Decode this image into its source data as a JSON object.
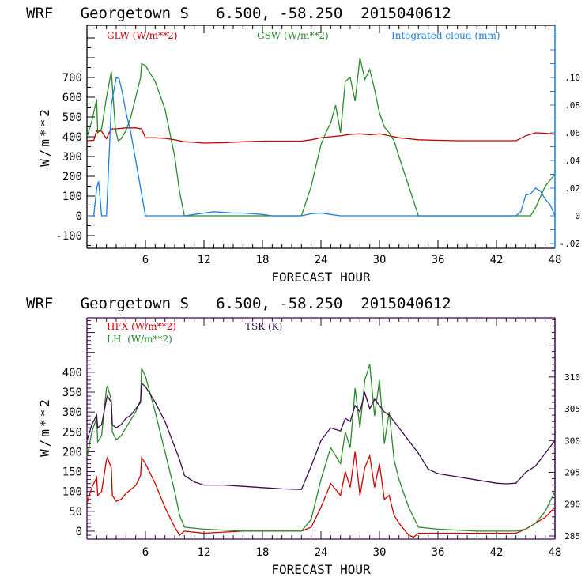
{
  "charts": [
    {
      "type": "line",
      "title": "WRF   Georgetown S   6.500, -58.250  2015040612",
      "xlabel": "FORECAST HOUR",
      "ylabel": "W/m**2",
      "xlim": [
        0,
        48
      ],
      "ylim": [
        -164,
        964
      ],
      "y2lim": [
        -0.0234,
        0.1377
      ],
      "xticks": [
        "6",
        "12",
        "18",
        "24",
        "30",
        "36",
        "42",
        "48"
      ],
      "yticks": [
        "-100",
        "0",
        "100",
        "200",
        "300",
        "400",
        "500",
        "600",
        "700"
      ],
      "y2ticks": [
        "-.02",
        "0",
        ".02",
        ".04",
        ".06",
        ".08",
        ".10"
      ],
      "frame_color": "#000000",
      "right_axis_color": "#1a7fe0",
      "legend": [
        {
          "label": "GLW (W/m**2)",
          "color": "#c00000"
        },
        {
          "label": "GSW (W/m**2)",
          "color": "#2a8a2a"
        },
        {
          "label": "Integrated cloud (mm)",
          "color": "#1a7fe0"
        }
      ]
    },
    {
      "type": "line",
      "title": "WRF   Georgetown S   6.500, -58.250  2015040612",
      "xlabel": "FORECAST HOUR",
      "ylabel": "W/m**2",
      "xlim": [
        0,
        48
      ],
      "ylim": [
        -20,
        537
      ],
      "y2lim": [
        284.5,
        319.3
      ],
      "xticks": [
        "6",
        "12",
        "18",
        "24",
        "30",
        "36",
        "42",
        "48"
      ],
      "yticks": [
        "0",
        "50",
        "100",
        "150",
        "200",
        "250",
        "300",
        "350",
        "400"
      ],
      "y2ticks": [
        "285",
        "290",
        "295",
        "300",
        "305",
        "310"
      ],
      "frame_color": "#3a0a4a",
      "right_axis_color": "#3a0a4a",
      "legend": [
        {
          "label": "HFX (W/m**2)",
          "color": "#d00000"
        },
        {
          "label": "LH  (W/m**2)",
          "color": "#2a8a2a"
        },
        {
          "label": "TSK (K)",
          "color": "#3a0a4a"
        }
      ]
    }
  ],
  "chart_data": [
    {
      "type": "line",
      "title": "WRF Georgetown S 6.500, -58.250 2015040612",
      "xlabel": "FORECAST HOUR",
      "ylabel": "W/m**2",
      "y2label": "Integrated cloud (mm)",
      "xlim": [
        0,
        48
      ],
      "ylim": [
        -164,
        964
      ],
      "y2lim": [
        -0.0234,
        0.1377
      ],
      "grid": false,
      "legend_position": "top",
      "series": [
        {
          "name": "GLW (W/m**2)",
          "axis": "left",
          "color": "#c00000",
          "x": [
            0,
            0.7,
            1,
            1.5,
            2,
            2.3,
            2.6,
            3,
            4,
            5,
            5.6,
            6,
            7,
            8,
            9,
            10,
            11,
            12,
            14,
            16,
            18,
            20,
            22,
            23,
            24,
            25,
            26,
            27,
            28,
            29,
            30,
            31,
            32,
            33,
            34,
            36,
            38,
            40,
            42,
            44,
            45,
            46,
            47,
            48
          ],
          "y": [
            380,
            382,
            430,
            428,
            390,
            424,
            440,
            440,
            445,
            445,
            440,
            395,
            395,
            392,
            385,
            375,
            372,
            368,
            370,
            375,
            378,
            378,
            378,
            385,
            395,
            400,
            405,
            412,
            415,
            410,
            415,
            405,
            395,
            390,
            385,
            382,
            380,
            380,
            380,
            380,
            405,
            420,
            418,
            413
          ]
        },
        {
          "name": "GSW (W/m**2)",
          "axis": "left",
          "color": "#2a8a2a",
          "x": [
            0,
            0.5,
            1,
            1.1,
            1.5,
            2,
            2.5,
            2.9,
            3,
            3.2,
            3.5,
            4,
            4.5,
            5,
            5.5,
            5.6,
            6,
            7,
            8,
            9,
            9.5,
            10,
            12,
            16,
            20,
            22,
            23,
            24,
            24.5,
            25,
            25.5,
            26,
            26.5,
            27,
            27.5,
            28,
            28.5,
            29,
            29.5,
            30,
            30.5,
            31,
            31.5,
            32,
            33,
            34,
            36,
            40,
            44,
            45.5,
            46,
            47,
            48
          ],
          "y": [
            400,
            480,
            590,
            420,
            440,
            600,
            730,
            450,
            420,
            380,
            390,
            430,
            500,
            600,
            700,
            770,
            760,
            680,
            540,
            300,
            120,
            0,
            0,
            0,
            0,
            0,
            150,
            360,
            420,
            470,
            560,
            420,
            680,
            700,
            580,
            800,
            690,
            740,
            640,
            520,
            450,
            420,
            380,
            300,
            150,
            0,
            0,
            0,
            0,
            0,
            40,
            150,
            210
          ]
        },
        {
          "name": "Integrated cloud (mm)",
          "axis": "right",
          "color": "#1a7fe0",
          "x": [
            0,
            0.7,
            1,
            1.2,
            1.5,
            2,
            2.5,
            3,
            3.3,
            3.6,
            4,
            4.5,
            5,
            5.5,
            6,
            8,
            10,
            11,
            12,
            13,
            14,
            15,
            16,
            17,
            18,
            19,
            20,
            22,
            23,
            24,
            25,
            26,
            30,
            35,
            40,
            44,
            44.5,
            45,
            45.5,
            46,
            46.5,
            47,
            47.5,
            48
          ],
          "y": [
            0,
            0,
            0.02,
            0.025,
            0,
            0,
            0.08,
            0.1,
            0.099,
            0.09,
            0.075,
            0.06,
            0.04,
            0.02,
            0,
            0,
            0,
            0.001,
            0.002,
            0.003,
            0.0025,
            0.002,
            0.002,
            0.0015,
            0.001,
            0,
            0,
            0,
            0.0015,
            0.002,
            0.001,
            0,
            0,
            0,
            0,
            0,
            0.003,
            0.015,
            0.016,
            0.02,
            0.018,
            0.012,
            0.008,
            0
          ]
        }
      ]
    },
    {
      "type": "line",
      "title": "WRF Georgetown S 6.500, -58.250 2015040612",
      "xlabel": "FORECAST HOUR",
      "ylabel": "W/m**2",
      "y2label": "TSK (K)",
      "xlim": [
        0,
        48
      ],
      "ylim": [
        -20,
        537
      ],
      "y2lim": [
        284.5,
        319.3
      ],
      "grid": false,
      "legend_position": "top-left",
      "series": [
        {
          "name": "HFX (W/m**2)",
          "axis": "left",
          "color": "#d00000",
          "x": [
            0,
            0.5,
            1,
            1.1,
            1.5,
            2,
            2.1,
            2.5,
            2.6,
            3,
            3.5,
            4,
            4.5,
            5,
            5.5,
            5.6,
            6,
            7,
            8,
            9,
            9.5,
            10,
            12,
            16,
            20,
            22,
            23,
            24,
            25,
            26,
            26.5,
            27,
            27.5,
            28,
            28.5,
            29,
            29.5,
            30,
            30.5,
            31,
            31.5,
            32,
            33,
            33.5,
            34,
            36,
            40,
            44,
            45,
            46,
            47,
            48
          ],
          "y": [
            70,
            110,
            135,
            90,
            100,
            180,
            185,
            160,
            90,
            75,
            80,
            95,
            105,
            115,
            140,
            185,
            170,
            120,
            60,
            10,
            -10,
            0,
            -5,
            0,
            0,
            0,
            10,
            60,
            120,
            90,
            150,
            110,
            200,
            90,
            160,
            190,
            110,
            170,
            80,
            90,
            40,
            20,
            -10,
            -15,
            -5,
            -5,
            -5,
            -5,
            5,
            20,
            35,
            60
          ]
        },
        {
          "name": "LH (W/m**2)",
          "axis": "left",
          "color": "#2a8a2a",
          "x": [
            0,
            0.5,
            1,
            1.1,
            1.5,
            2,
            2.1,
            2.5,
            2.6,
            3,
            3.5,
            4,
            4.5,
            5,
            5.5,
            5.6,
            6,
            7,
            8,
            9,
            9.5,
            10,
            12,
            16,
            20,
            22,
            23,
            24,
            25,
            26,
            26.5,
            27,
            27.5,
            28,
            28.5,
            29,
            29.5,
            30,
            30.5,
            31,
            31.5,
            32,
            33,
            34,
            36,
            40,
            44,
            45,
            46,
            47,
            48
          ],
          "y": [
            185,
            250,
            285,
            225,
            240,
            360,
            365,
            330,
            250,
            230,
            240,
            260,
            280,
            300,
            330,
            410,
            390,
            300,
            200,
            100,
            40,
            10,
            5,
            0,
            0,
            0,
            30,
            130,
            210,
            170,
            250,
            210,
            360,
            260,
            380,
            420,
            290,
            380,
            220,
            300,
            180,
            130,
            60,
            10,
            5,
            0,
            0,
            5,
            20,
            50,
            100
          ]
        },
        {
          "name": "TSK (K)",
          "axis": "right",
          "color": "#3a0a4a",
          "x": [
            0,
            0.5,
            1,
            1.1,
            1.5,
            2,
            2.1,
            2.5,
            2.6,
            3,
            3.5,
            4,
            4.5,
            5,
            5.5,
            5.6,
            6,
            7,
            8,
            9,
            9.5,
            10,
            11,
            12,
            14,
            16,
            18,
            20,
            22,
            23,
            24,
            25,
            26,
            26.5,
            27,
            27.5,
            28,
            28.5,
            29,
            29.5,
            30,
            30.5,
            31,
            31.5,
            32,
            33,
            34,
            35,
            36,
            38,
            40,
            42,
            43,
            44,
            45,
            46,
            47,
            48
          ],
          "y": [
            300,
            302.5,
            304,
            302,
            302.5,
            306.5,
            307,
            306,
            302.5,
            302,
            302.5,
            303.5,
            304,
            305,
            306,
            309,
            308.5,
            306,
            303,
            299,
            297,
            294.5,
            293.5,
            293,
            293,
            292.8,
            292.6,
            292.4,
            292.3,
            296,
            300,
            302,
            301.5,
            303.5,
            303,
            305.5,
            304.5,
            307.5,
            305,
            306.5,
            305.5,
            304.5,
            304,
            303,
            302,
            300,
            298,
            295.5,
            294.8,
            294.3,
            293.8,
            293.3,
            293.2,
            293.3,
            295,
            296,
            298,
            300
          ]
        }
      ]
    }
  ]
}
